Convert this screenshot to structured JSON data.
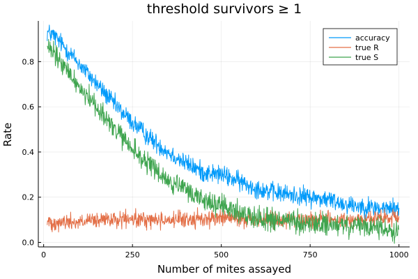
{
  "chart_data": {
    "type": "line",
    "title": "threshold survivors ≥ 1",
    "xlabel": "Number of mites assayed",
    "ylabel": "Rate",
    "xlim": [
      -15,
      1030
    ],
    "ylim": [
      -0.02,
      0.98
    ],
    "x_ticks": [
      0,
      250,
      500,
      750,
      1000
    ],
    "y_ticks": [
      0.0,
      0.2,
      0.4,
      0.6,
      0.8
    ],
    "x_tick_labels": [
      "0",
      "250",
      "500",
      "750",
      "1000"
    ],
    "y_tick_labels": [
      "0.0",
      "0.2",
      "0.4",
      "0.6",
      "0.8"
    ],
    "grid": true,
    "legend_position": "top-right",
    "x_range": [
      10,
      1000
    ],
    "series": [
      {
        "name": "accuracy",
        "color": "#009AFA",
        "trend_x": [
          10,
          25,
          50,
          100,
          150,
          200,
          250,
          300,
          350,
          400,
          450,
          500,
          550,
          600,
          650,
          700,
          750,
          800,
          850,
          900,
          950,
          1000
        ],
        "trend_y": [
          0.93,
          0.92,
          0.88,
          0.79,
          0.7,
          0.61,
          0.53,
          0.46,
          0.4,
          0.35,
          0.31,
          0.3,
          0.27,
          0.24,
          0.22,
          0.21,
          0.2,
          0.19,
          0.17,
          0.16,
          0.15,
          0.15
        ],
        "noise": 0.03
      },
      {
        "name": "true R",
        "color": "#E36F47",
        "trend_x": [
          10,
          100,
          200,
          300,
          400,
          500,
          600,
          700,
          800,
          900,
          1000
        ],
        "trend_y": [
          0.09,
          0.09,
          0.1,
          0.1,
          0.1,
          0.11,
          0.1,
          0.1,
          0.1,
          0.1,
          0.11
        ],
        "noise": 0.026
      },
      {
        "name": "true S",
        "color": "#3EA44E",
        "trend_x": [
          10,
          25,
          50,
          100,
          150,
          200,
          250,
          300,
          350,
          400,
          450,
          500,
          550,
          600,
          650,
          700,
          750,
          800,
          850,
          900,
          950,
          1000
        ],
        "trend_y": [
          0.86,
          0.84,
          0.79,
          0.69,
          0.6,
          0.5,
          0.41,
          0.34,
          0.27,
          0.23,
          0.19,
          0.16,
          0.13,
          0.11,
          0.1,
          0.09,
          0.08,
          0.08,
          0.07,
          0.07,
          0.06,
          0.05
        ],
        "noise": 0.035
      }
    ]
  }
}
